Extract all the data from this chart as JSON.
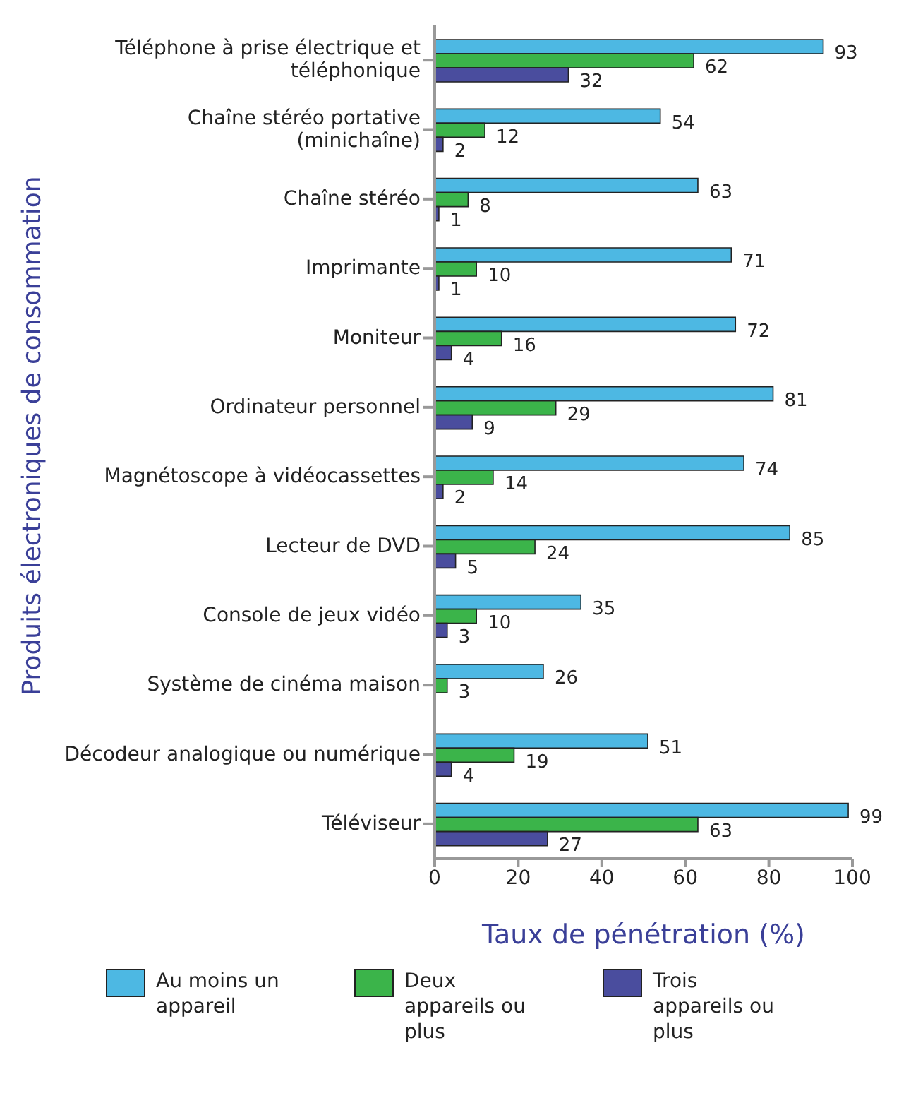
{
  "chart_data": {
    "type": "bar",
    "orientation": "horizontal",
    "ylabel": "Produits électroniques de consommation",
    "xlabel": "Taux de pénétration (%)",
    "categories": [
      "Téléphone à prise électrique et téléphonique",
      "Chaîne stéréo portative (minichaîne)",
      "Chaîne stéréo",
      "Imprimante",
      "Moniteur",
      "Ordinateur personnel",
      "Magnétoscope à vidéocassettes",
      "Lecteur de DVD",
      "Console de jeux vidéo",
      "Système de cinéma maison",
      "Décodeur analogique ou numérique",
      "Téléviseur"
    ],
    "series": [
      {
        "name": "Au moins un appareil",
        "color": "#4db8e3",
        "values": [
          93,
          54,
          63,
          71,
          72,
          81,
          74,
          85,
          35,
          26,
          51,
          99
        ]
      },
      {
        "name": "Deux appareils ou plus",
        "color": "#3bb44a",
        "values": [
          62,
          12,
          8,
          10,
          16,
          29,
          14,
          24,
          10,
          3,
          19,
          63
        ]
      },
      {
        "name": "Trois appareils ou plus",
        "color": "#4a4d9e",
        "values": [
          32,
          2,
          1,
          1,
          4,
          9,
          2,
          5,
          3,
          null,
          4,
          27
        ]
      }
    ],
    "xlim": [
      0,
      100
    ],
    "xticks": [
      0,
      20,
      40,
      60,
      80,
      100
    ],
    "data_labels": true,
    "grid": false,
    "legend": "bottom"
  }
}
